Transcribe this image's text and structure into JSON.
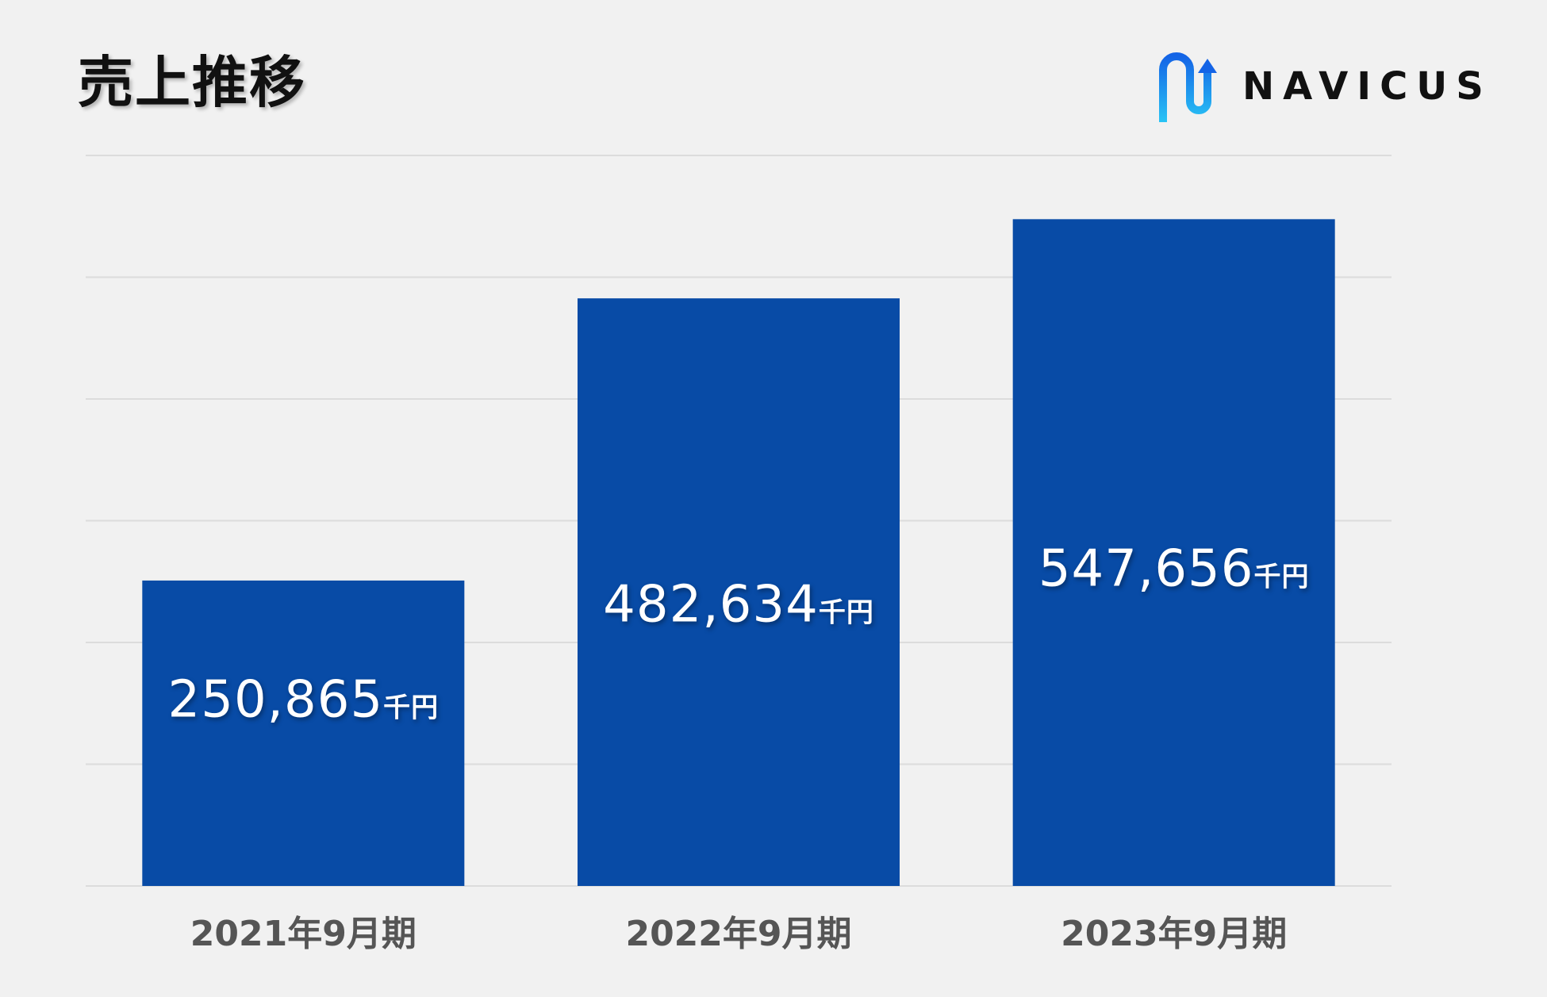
{
  "title": "売上推移",
  "logo": {
    "text": "NAVICUS",
    "icon": "navicus-n-arrow-logo"
  },
  "colors": {
    "bar": "#084BA6",
    "grid": "#dcdcdc",
    "label": "#ffffff",
    "axis_text": "#555555",
    "logo_gradient_top": "#1464e6",
    "logo_gradient_bottom": "#29c4f5"
  },
  "chart_data": {
    "type": "bar",
    "title": "売上推移",
    "categories": [
      "2021年9月期",
      "2022年9月期",
      "2023年9月期"
    ],
    "values": [
      250865,
      482634,
      547656
    ],
    "labels": [
      "250,865",
      "482,634",
      "547,656"
    ],
    "unit": "千円",
    "ylim": [
      0,
      600000
    ],
    "grid": true,
    "legend": "none"
  }
}
